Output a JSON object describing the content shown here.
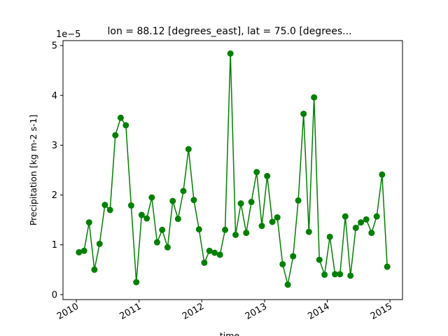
{
  "chart_data": {
    "type": "line",
    "title": "lon = 88.12 [degrees_east], lat = 75.0 [degrees...",
    "xlabel": "time",
    "ylabel": "Precipitation [kg m-2 s-1]",
    "y_offset_label": "1e−5",
    "ylim": [
      -0.1,
      5.1
    ],
    "xlim": [
      "2009-10-15",
      "2015-03-15"
    ],
    "x_ticks": [
      "2010",
      "2011",
      "2012",
      "2013",
      "2014",
      "2015"
    ],
    "y_ticks": [
      "0",
      "1",
      "2",
      "3",
      "4",
      "5"
    ],
    "line_color": "#008000",
    "marker": "circle",
    "grid": false,
    "series": [
      {
        "x": [
          "2010-01-16",
          "2010-02-15",
          "2010-03-16",
          "2010-04-16",
          "2010-05-16",
          "2010-06-16",
          "2010-07-16",
          "2010-08-16",
          "2010-09-16",
          "2010-10-16",
          "2010-11-16",
          "2010-12-16",
          "2011-01-16",
          "2011-02-15",
          "2011-03-16",
          "2011-04-16",
          "2011-05-16",
          "2011-06-16",
          "2011-07-16",
          "2011-08-16",
          "2011-09-16",
          "2011-10-16",
          "2011-11-16",
          "2011-12-16",
          "2012-01-16",
          "2012-02-15",
          "2012-03-16",
          "2012-04-16",
          "2012-05-16",
          "2012-06-16",
          "2012-07-16",
          "2012-08-16",
          "2012-09-16",
          "2012-10-16",
          "2012-11-16",
          "2012-12-16",
          "2013-01-16",
          "2013-02-15",
          "2013-03-16",
          "2013-04-16",
          "2013-05-16",
          "2013-06-16",
          "2013-07-16",
          "2013-08-16",
          "2013-09-16",
          "2013-10-16",
          "2013-11-16",
          "2013-12-16",
          "2014-01-16",
          "2014-02-15",
          "2014-03-16",
          "2014-04-16",
          "2014-05-16",
          "2014-06-16",
          "2014-07-16",
          "2014-08-16",
          "2014-09-16",
          "2014-10-16",
          "2014-11-16",
          "2014-12-16"
        ],
        "y": [
          0.85,
          0.88,
          1.45,
          0.5,
          1.02,
          1.8,
          1.7,
          3.2,
          3.55,
          3.4,
          1.79,
          0.25,
          1.6,
          1.53,
          1.95,
          1.05,
          1.3,
          0.95,
          1.88,
          1.52,
          2.08,
          2.92,
          1.9,
          1.31,
          0.64,
          0.88,
          0.84,
          0.8,
          1.3,
          4.84,
          1.2,
          1.83,
          1.24,
          1.86,
          2.46,
          1.38,
          2.38,
          1.46,
          1.55,
          0.61,
          0.2,
          0.77,
          1.89,
          3.63,
          1.26,
          3.96,
          0.7,
          0.4,
          1.16,
          0.41,
          0.41,
          1.57,
          0.38,
          1.34,
          1.45,
          1.51,
          1.24,
          1.57,
          2.41,
          0.56
        ]
      }
    ]
  }
}
